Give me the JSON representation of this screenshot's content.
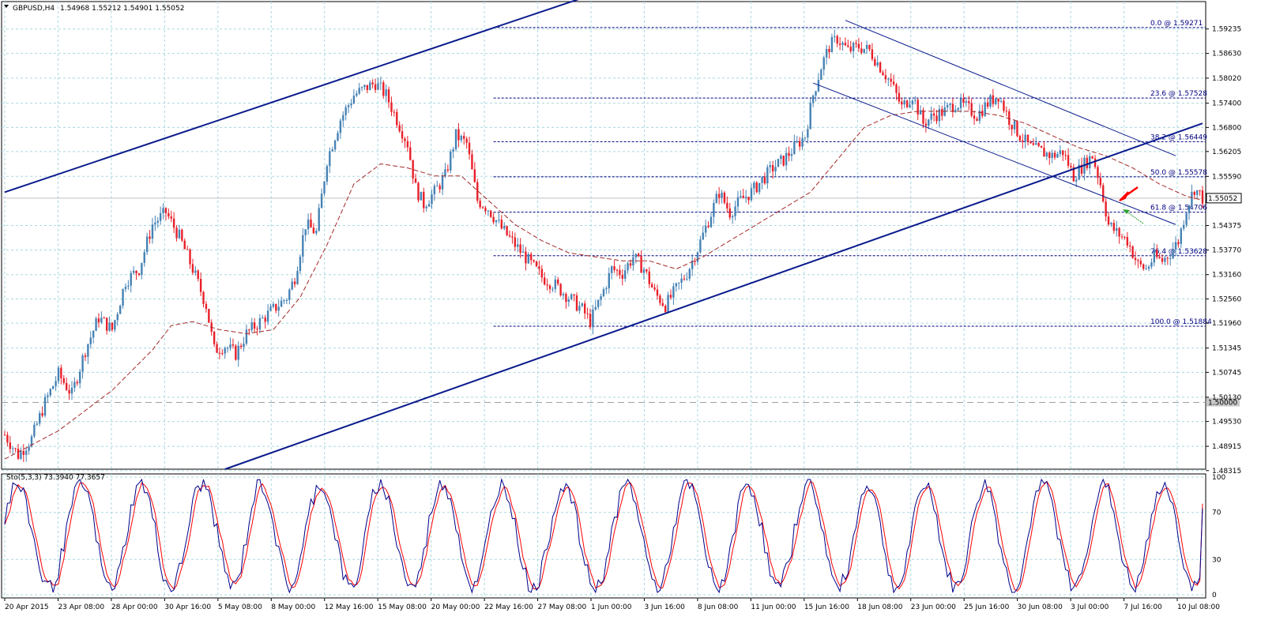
{
  "header": {
    "symbol": "GBPUSD,H4",
    "ohlc": "1.54968 1.55212 1.54901 1.55052"
  },
  "colors": {
    "bull": "#4682b4",
    "bear": "#e8202a",
    "grid": "#a8d8e0",
    "channel": "#0a1a8c",
    "fib": "#000080",
    "ma": "#a52a2a",
    "stoch_main": "#00008b",
    "stoch_signal": "#ff0000",
    "signal_arrow_down": "#ff0000",
    "signal_arrow_up": "#2ca02c"
  },
  "chart_data": {
    "type": "candlestick",
    "symbol": "GBPUSD",
    "timeframe": "H4",
    "ylim": [
      1.4835,
      1.596
    ],
    "yticks": [
      "1.59235",
      "1.58630",
      "1.58020",
      "1.57400",
      "1.56800",
      "1.56205",
      "1.55590",
      "1.54375",
      "1.53770",
      "1.53160",
      "1.52560",
      "1.51960",
      "1.51345",
      "1.50745",
      "1.50130",
      "1.49530",
      "1.48915",
      "1.48315"
    ],
    "xticks": [
      "20 Apr 2015",
      "23 Apr 08:00",
      "28 Apr 00:00",
      "30 Apr 16:00",
      "5 May 08:00",
      "8 May 00:00",
      "12 May 16:00",
      "15 May 08:00",
      "20 May 00:00",
      "22 May 16:00",
      "27 May 08:00",
      "1 Jun 00:00",
      "3 Jun 16:00",
      "8 Jun 08:00",
      "11 Jun 00:00",
      "15 Jun 16:00",
      "18 Jun 08:00",
      "23 Jun 00:00",
      "25 Jun 16:00",
      "30 Jun 08:00",
      "3 Jul 00:00",
      "7 Jul 16:00",
      "10 Jul 08:00"
    ],
    "last_price": "1.55052",
    "reference_level": {
      "value": 1.5,
      "label": "1.50000"
    },
    "fibonacci": [
      {
        "level": 1.59271,
        "label": "0.0 @ 1.59271"
      },
      {
        "level": 1.57528,
        "label": "23.6 @ 1.57528"
      },
      {
        "level": 1.56449,
        "label": "38.2 @ 1.56449"
      },
      {
        "level": 1.55578,
        "label": "50.0 @ 1.55578"
      },
      {
        "level": 1.54706,
        "label": "61.8 @ 1.54706"
      },
      {
        "level": 1.53628,
        "label": "76.4 @ 1.53628"
      },
      {
        "level": 1.51884,
        "label": "100.0 @ 1.51884"
      }
    ],
    "price_anchors": [
      [
        0,
        1.492
      ],
      [
        5,
        1.487
      ],
      [
        10,
        1.491
      ],
      [
        15,
        1.5
      ],
      [
        20,
        1.507
      ],
      [
        25,
        1.502
      ],
      [
        30,
        1.513
      ],
      [
        35,
        1.521
      ],
      [
        40,
        1.518
      ],
      [
        45,
        1.53
      ],
      [
        50,
        1.533
      ],
      [
        55,
        1.544
      ],
      [
        60,
        1.547
      ],
      [
        65,
        1.541
      ],
      [
        70,
        1.533
      ],
      [
        75,
        1.524
      ],
      [
        78,
        1.513
      ],
      [
        82,
        1.514
      ],
      [
        86,
        1.512
      ],
      [
        90,
        1.517
      ],
      [
        95,
        1.52
      ],
      [
        100,
        1.523
      ],
      [
        105,
        1.526
      ],
      [
        108,
        1.531
      ],
      [
        112,
        1.544
      ],
      [
        116,
        1.542
      ],
      [
        120,
        1.56
      ],
      [
        125,
        1.57
      ],
      [
        130,
        1.576
      ],
      [
        135,
        1.578
      ],
      [
        138,
        1.579
      ],
      [
        142,
        1.576
      ],
      [
        146,
        1.57
      ],
      [
        150,
        1.564
      ],
      [
        153,
        1.553
      ],
      [
        156,
        1.549
      ],
      [
        160,
        1.552
      ],
      [
        164,
        1.556
      ],
      [
        168,
        1.566
      ],
      [
        172,
        1.564
      ],
      [
        176,
        1.55
      ],
      [
        180,
        1.548
      ],
      [
        185,
        1.543
      ],
      [
        190,
        1.539
      ],
      [
        195,
        1.535
      ],
      [
        200,
        1.531
      ],
      [
        205,
        1.529
      ],
      [
        210,
        1.526
      ],
      [
        215,
        1.523
      ],
      [
        218,
        1.52
      ],
      [
        222,
        1.526
      ],
      [
        226,
        1.533
      ],
      [
        230,
        1.532
      ],
      [
        234,
        1.536
      ],
      [
        238,
        1.533
      ],
      [
        242,
        1.527
      ],
      [
        246,
        1.524
      ],
      [
        250,
        1.528
      ],
      [
        254,
        1.532
      ],
      [
        258,
        1.538
      ],
      [
        262,
        1.545
      ],
      [
        266,
        1.552
      ],
      [
        270,
        1.547
      ],
      [
        274,
        1.55
      ],
      [
        278,
        1.552
      ],
      [
        282,
        1.555
      ],
      [
        286,
        1.558
      ],
      [
        290,
        1.56
      ],
      [
        294,
        1.563
      ],
      [
        298,
        1.566
      ],
      [
        301,
        1.576
      ],
      [
        304,
        1.583
      ],
      [
        307,
        1.588
      ],
      [
        310,
        1.59
      ],
      [
        314,
        1.587
      ],
      [
        318,
        1.588
      ],
      [
        322,
        1.587
      ],
      [
        326,
        1.583
      ],
      [
        330,
        1.579
      ],
      [
        334,
        1.573
      ],
      [
        338,
        1.576
      ],
      [
        342,
        1.569
      ],
      [
        346,
        1.571
      ],
      [
        350,
        1.572
      ],
      [
        354,
        1.574
      ],
      [
        358,
        1.573
      ],
      [
        362,
        1.571
      ],
      [
        366,
        1.574
      ],
      [
        370,
        1.576
      ],
      [
        374,
        1.57
      ],
      [
        378,
        1.566
      ],
      [
        382,
        1.563
      ],
      [
        386,
        1.562
      ],
      [
        390,
        1.561
      ],
      [
        394,
        1.562
      ],
      [
        398,
        1.556
      ],
      [
        402,
        1.559
      ],
      [
        405,
        1.561
      ],
      [
        408,
        1.554
      ],
      [
        411,
        1.544
      ],
      [
        414,
        1.542
      ],
      [
        418,
        1.54
      ],
      [
        422,
        1.534
      ],
      [
        425,
        1.533
      ],
      [
        428,
        1.536
      ],
      [
        431,
        1.535
      ],
      [
        434,
        1.537
      ],
      [
        437,
        1.54
      ],
      [
        440,
        1.548
      ],
      [
        443,
        1.553
      ],
      [
        446,
        1.5505
      ]
    ],
    "moving_average_anchors": [
      [
        0,
        1.486
      ],
      [
        20,
        1.493
      ],
      [
        40,
        1.503
      ],
      [
        55,
        1.513
      ],
      [
        62,
        1.519
      ],
      [
        70,
        1.52
      ],
      [
        80,
        1.518
      ],
      [
        90,
        1.517
      ],
      [
        100,
        1.518
      ],
      [
        110,
        1.526
      ],
      [
        120,
        1.539
      ],
      [
        130,
        1.554
      ],
      [
        140,
        1.559
      ],
      [
        150,
        1.558
      ],
      [
        160,
        1.556
      ],
      [
        170,
        1.556
      ],
      [
        180,
        1.55
      ],
      [
        190,
        1.544
      ],
      [
        200,
        1.54
      ],
      [
        210,
        1.537
      ],
      [
        220,
        1.536
      ],
      [
        230,
        1.535
      ],
      [
        240,
        1.535
      ],
      [
        250,
        1.533
      ],
      [
        260,
        1.536
      ],
      [
        270,
        1.54
      ],
      [
        280,
        1.544
      ],
      [
        290,
        1.548
      ],
      [
        300,
        1.552
      ],
      [
        310,
        1.56
      ],
      [
        320,
        1.568
      ],
      [
        330,
        1.571
      ],
      [
        340,
        1.572
      ],
      [
        350,
        1.572
      ],
      [
        360,
        1.572
      ],
      [
        370,
        1.571
      ],
      [
        380,
        1.569
      ],
      [
        390,
        1.566
      ],
      [
        400,
        1.563
      ],
      [
        410,
        1.561
      ],
      [
        420,
        1.558
      ],
      [
        430,
        1.554
      ],
      [
        440,
        1.551
      ],
      [
        446,
        1.55
      ]
    ],
    "trendlines": [
      {
        "name": "upper-channel",
        "from": [
          0,
          1.552
        ],
        "to": [
          215,
          1.6
        ]
      },
      {
        "name": "lower-channel",
        "from": [
          82,
          1.4835
        ],
        "to": [
          446,
          1.569
        ]
      },
      {
        "name": "down-channel-upper",
        "from": [
          313,
          1.5945
        ],
        "to": [
          436,
          1.561
        ]
      },
      {
        "name": "down-channel-lower",
        "from": [
          301,
          1.579
        ],
        "to": [
          436,
          1.544
        ]
      }
    ],
    "stochastic": {
      "label": "Sto(5,3,3) 73.3940 77.3657",
      "k": 73.394,
      "d": 77.3657,
      "ylim": [
        0,
        100
      ],
      "levels": [
        "100",
        "70",
        "30",
        "0"
      ]
    }
  }
}
